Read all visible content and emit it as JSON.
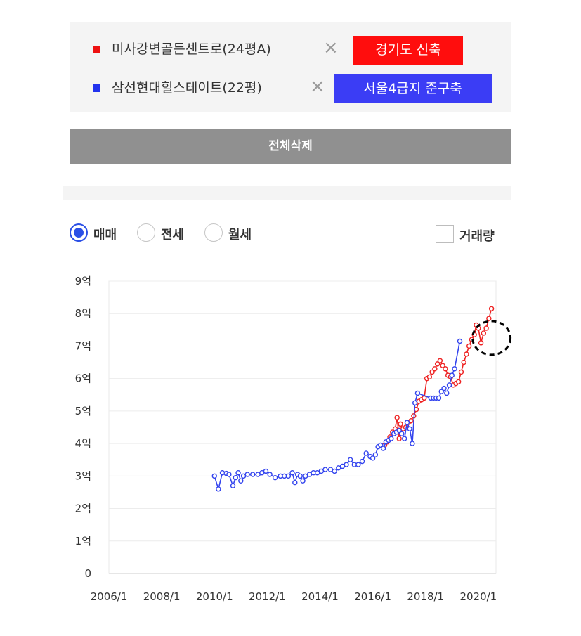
{
  "compare": {
    "items": [
      {
        "name": "미사강변골든센트로(24평A)",
        "remove": "×",
        "tag": "경기도 신축",
        "color": "#ee1111",
        "tag_bg": "#ff0d0d"
      },
      {
        "name": "삼선현대힐스테이트(22평)",
        "remove": "×",
        "tag": "서울4급지 준구축",
        "color": "#2233ee",
        "tag_bg": "#3b3df5"
      }
    ],
    "delete_all": "전체삭제"
  },
  "controls": {
    "radios": [
      {
        "label": "매매",
        "selected": true
      },
      {
        "label": "전세",
        "selected": false
      },
      {
        "label": "월세",
        "selected": false
      }
    ],
    "volume_label": "거래량",
    "volume_checked": false
  },
  "chart_data": {
    "type": "line",
    "y_unit": "억",
    "ylim": [
      0,
      9
    ],
    "yticks": [
      {
        "v": 0,
        "label": "0"
      },
      {
        "v": 1,
        "label": "1억"
      },
      {
        "v": 2,
        "label": "2억"
      },
      {
        "v": 3,
        "label": "3억"
      },
      {
        "v": 4,
        "label": "4억"
      },
      {
        "v": 5,
        "label": "5억"
      },
      {
        "v": 6,
        "label": "6억"
      },
      {
        "v": 7,
        "label": "7억"
      },
      {
        "v": 8,
        "label": "8억"
      },
      {
        "v": 9,
        "label": "9억"
      }
    ],
    "xlim": [
      2006.0,
      2020.67
    ],
    "xticks": [
      {
        "v": 2006,
        "label": "2006/1"
      },
      {
        "v": 2008,
        "label": "2008/1"
      },
      {
        "v": 2010,
        "label": "2010/1"
      },
      {
        "v": 2012,
        "label": "2012/1"
      },
      {
        "v": 2014,
        "label": "2014/1"
      },
      {
        "v": 2016,
        "label": "2016/1"
      },
      {
        "v": 2018,
        "label": "2018/1"
      },
      {
        "v": 2020,
        "label": "2020/1"
      }
    ],
    "grid": true,
    "annotation": {
      "type": "dashed-circle",
      "x": 2020.5,
      "y": 7.25
    },
    "series": [
      {
        "color": "#ee2222",
        "points": [
          [
            2016.45,
            3.95
          ],
          [
            2016.55,
            4.05
          ],
          [
            2016.65,
            4.2
          ],
          [
            2016.75,
            4.35
          ],
          [
            2016.85,
            4.45
          ],
          [
            2016.92,
            4.8
          ],
          [
            2017.0,
            4.15
          ],
          [
            2017.05,
            4.6
          ],
          [
            2017.15,
            4.45
          ],
          [
            2017.25,
            4.5
          ],
          [
            2017.35,
            4.65
          ],
          [
            2017.45,
            4.7
          ],
          [
            2017.55,
            4.85
          ],
          [
            2017.65,
            5.05
          ],
          [
            2017.75,
            5.3
          ],
          [
            2017.85,
            5.35
          ],
          [
            2017.95,
            5.4
          ],
          [
            2018.05,
            6.0
          ],
          [
            2018.15,
            6.05
          ],
          [
            2018.25,
            6.2
          ],
          [
            2018.35,
            6.3
          ],
          [
            2018.45,
            6.45
          ],
          [
            2018.55,
            6.55
          ],
          [
            2018.65,
            6.4
          ],
          [
            2018.75,
            6.3
          ],
          [
            2018.85,
            6.1
          ],
          [
            2018.95,
            6.05
          ],
          [
            2019.05,
            5.8
          ],
          [
            2019.15,
            5.85
          ],
          [
            2019.25,
            5.9
          ],
          [
            2019.35,
            6.2
          ],
          [
            2019.45,
            6.5
          ],
          [
            2019.55,
            6.75
          ],
          [
            2019.65,
            7.0
          ],
          [
            2019.75,
            7.2
          ],
          [
            2019.85,
            7.35
          ],
          [
            2019.92,
            7.65
          ],
          [
            2020.0,
            7.55
          ],
          [
            2020.1,
            7.1
          ],
          [
            2020.2,
            7.4
          ],
          [
            2020.3,
            7.55
          ],
          [
            2020.4,
            7.85
          ],
          [
            2020.5,
            8.15
          ]
        ]
      },
      {
        "color": "#3344ee",
        "points": [
          [
            2010.0,
            3.0
          ],
          [
            2010.15,
            2.6
          ],
          [
            2010.3,
            3.1
          ],
          [
            2010.45,
            3.08
          ],
          [
            2010.55,
            3.05
          ],
          [
            2010.7,
            2.7
          ],
          [
            2010.8,
            2.95
          ],
          [
            2010.9,
            3.1
          ],
          [
            2011.0,
            2.85
          ],
          [
            2011.1,
            3.0
          ],
          [
            2011.25,
            3.05
          ],
          [
            2011.45,
            3.05
          ],
          [
            2011.65,
            3.05
          ],
          [
            2011.8,
            3.1
          ],
          [
            2011.95,
            3.15
          ],
          [
            2012.1,
            3.05
          ],
          [
            2012.3,
            2.95
          ],
          [
            2012.5,
            3.0
          ],
          [
            2012.65,
            3.0
          ],
          [
            2012.8,
            3.0
          ],
          [
            2012.95,
            3.1
          ],
          [
            2013.05,
            2.8
          ],
          [
            2013.15,
            3.05
          ],
          [
            2013.25,
            3.0
          ],
          [
            2013.35,
            2.85
          ],
          [
            2013.45,
            3.0
          ],
          [
            2013.6,
            3.05
          ],
          [
            2013.75,
            3.1
          ],
          [
            2013.9,
            3.1
          ],
          [
            2014.05,
            3.15
          ],
          [
            2014.2,
            3.2
          ],
          [
            2014.4,
            3.2
          ],
          [
            2014.55,
            3.15
          ],
          [
            2014.7,
            3.25
          ],
          [
            2014.85,
            3.3
          ],
          [
            2015.0,
            3.35
          ],
          [
            2015.15,
            3.5
          ],
          [
            2015.3,
            3.35
          ],
          [
            2015.45,
            3.35
          ],
          [
            2015.6,
            3.45
          ],
          [
            2015.75,
            3.7
          ],
          [
            2015.9,
            3.6
          ],
          [
            2016.0,
            3.55
          ],
          [
            2016.1,
            3.65
          ],
          [
            2016.2,
            3.9
          ],
          [
            2016.3,
            3.95
          ],
          [
            2016.4,
            3.85
          ],
          [
            2016.5,
            4.05
          ],
          [
            2016.6,
            4.1
          ],
          [
            2016.7,
            4.15
          ],
          [
            2016.8,
            4.3
          ],
          [
            2016.9,
            4.35
          ],
          [
            2017.0,
            4.4
          ],
          [
            2017.1,
            4.3
          ],
          [
            2017.2,
            4.15
          ],
          [
            2017.3,
            4.65
          ],
          [
            2017.4,
            4.45
          ],
          [
            2017.5,
            4.0
          ],
          [
            2017.6,
            5.25
          ],
          [
            2017.7,
            5.55
          ],
          [
            2018.2,
            5.4
          ],
          [
            2018.3,
            5.4
          ],
          [
            2018.4,
            5.4
          ],
          [
            2018.5,
            5.4
          ],
          [
            2018.6,
            5.6
          ],
          [
            2018.7,
            5.7
          ],
          [
            2018.8,
            5.55
          ],
          [
            2018.9,
            5.8
          ],
          [
            2019.0,
            6.1
          ],
          [
            2019.1,
            6.3
          ],
          [
            2019.3,
            7.15
          ]
        ]
      }
    ]
  }
}
